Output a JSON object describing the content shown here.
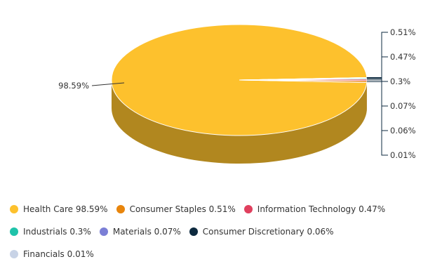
{
  "chart_data": {
    "type": "pie",
    "title": "",
    "legend_position": "bottom",
    "series": [
      {
        "name": "Health Care",
        "value": 98.59,
        "label": "98.59%",
        "legend": "Health Care 98.59%",
        "color": "#FDC12D"
      },
      {
        "name": "Consumer Staples",
        "value": 0.51,
        "label": "0.51%",
        "legend": "Consumer Staples 0.51%",
        "color": "#E8850C"
      },
      {
        "name": "Information Technology",
        "value": 0.47,
        "label": "0.47%",
        "legend": "Information Technology 0.47%",
        "color": "#E0405E"
      },
      {
        "name": "Industrials",
        "value": 0.3,
        "label": "0.3%",
        "legend": "Industrials 0.3%",
        "color": "#1FC3AA"
      },
      {
        "name": "Materials",
        "value": 0.07,
        "label": "0.07%",
        "legend": "Materials 0.07%",
        "color": "#7B7FD6"
      },
      {
        "name": "Consumer Discretionary",
        "value": 0.06,
        "label": "0.06%",
        "legend": "Consumer Discretionary 0.06%",
        "color": "#0D2A3F"
      },
      {
        "name": "Financials",
        "value": 0.01,
        "label": "0.01%",
        "legend": "Financials 0.01%",
        "color": "#C8D3E6"
      }
    ]
  }
}
